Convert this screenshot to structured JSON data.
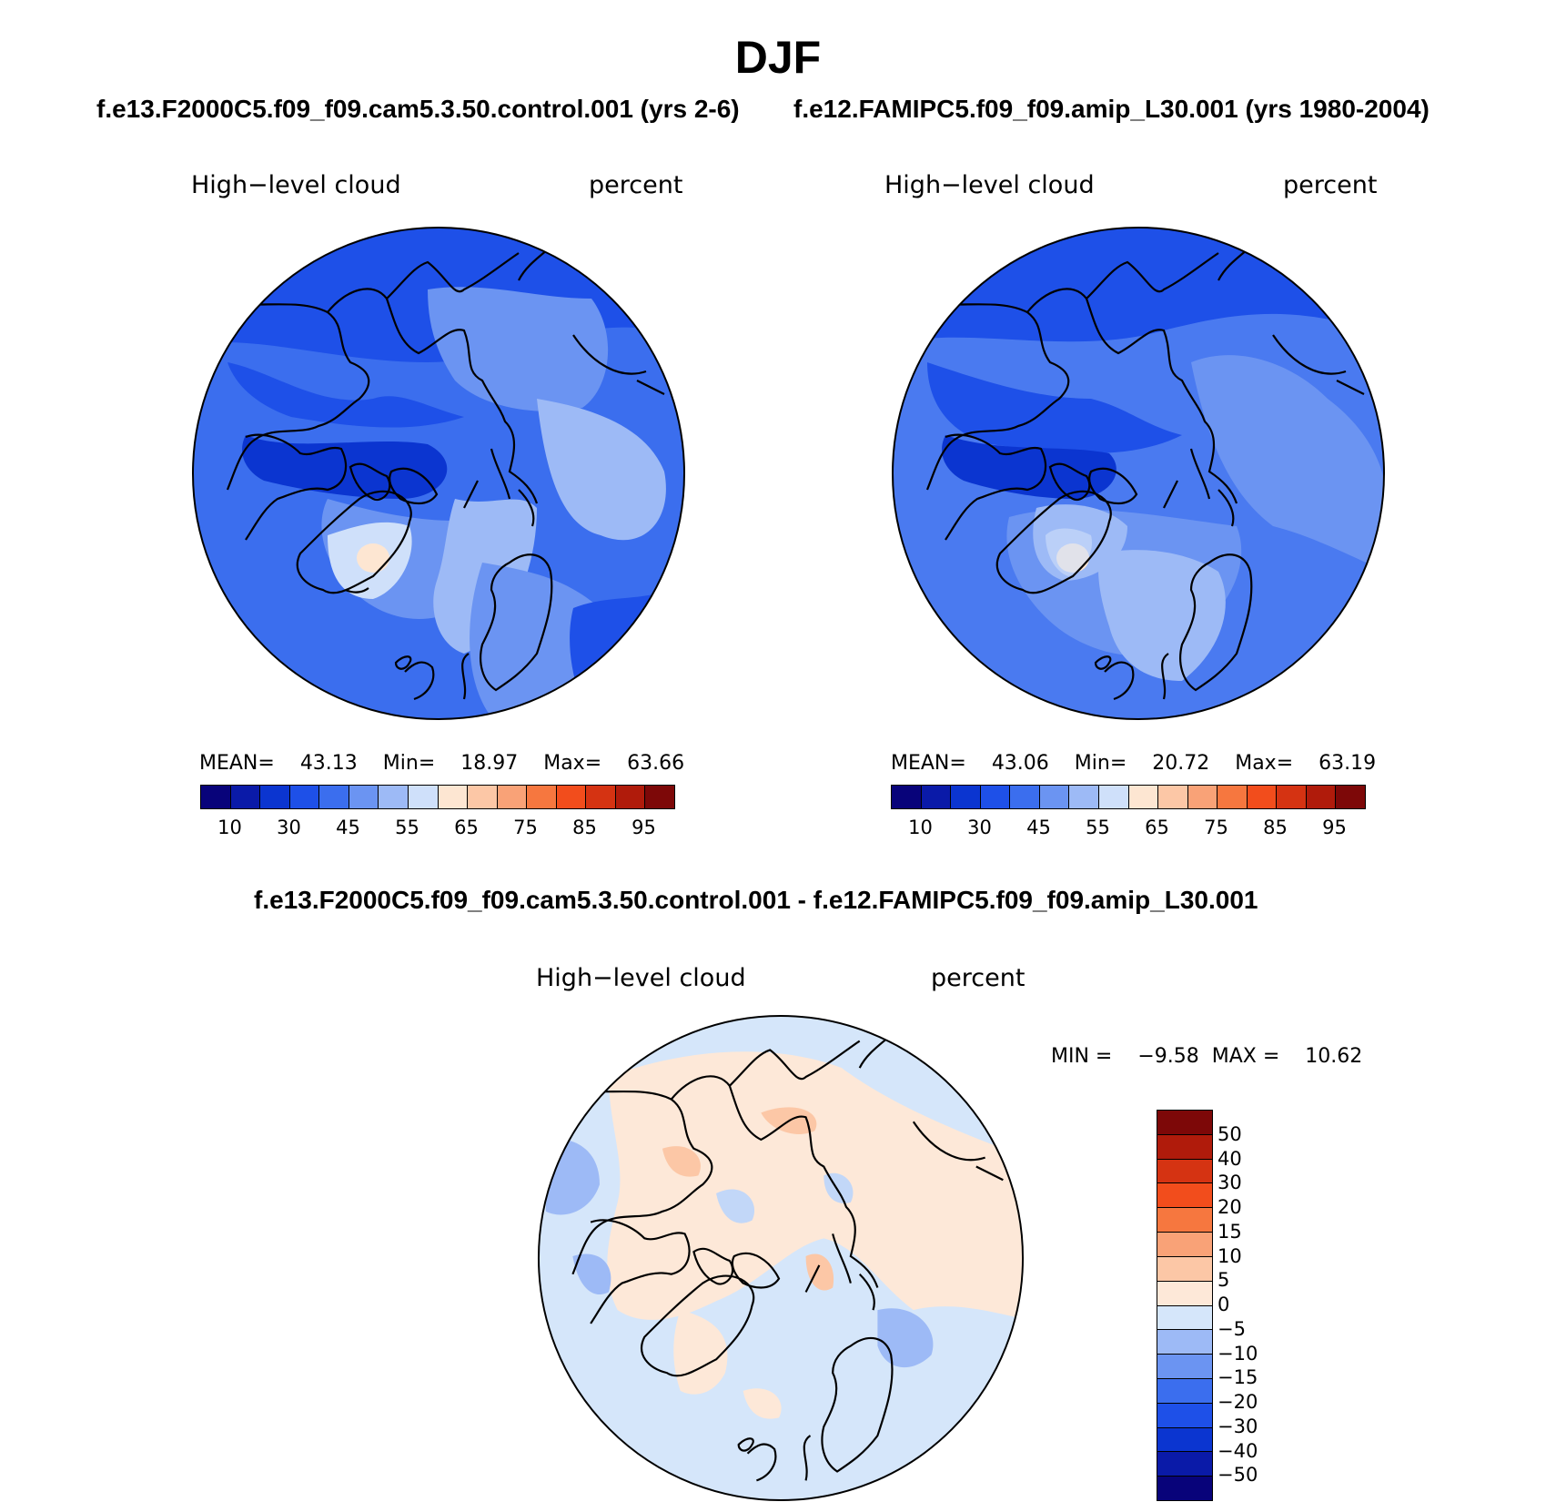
{
  "title": "DJF",
  "subtitle_top_left": "f.e13.F2000C5.f09_f09.cam5.3.50.control.001 (yrs 2-6)",
  "subtitle_top_right": "f.e12.FAMIPC5.f09_f09.amip_L30.001 (yrs 1980-2004)",
  "subtitle_bottom": "f.e13.F2000C5.f09_f09.cam5.3.50.control.001 - f.e12.FAMIPC5.f09_f09.amip_L30.001",
  "panels": [
    {
      "variable": "High−level cloud",
      "units": "percent",
      "mean_label": "MEAN=",
      "mean": "43.13",
      "min_label": "Min=",
      "min": "18.97",
      "max_label": "Max=",
      "max": "63.66"
    },
    {
      "variable": "High−level cloud",
      "units": "percent",
      "mean_label": "MEAN=",
      "mean": "43.06",
      "min_label": "Min=",
      "min": "20.72",
      "max_label": "Max=",
      "max": "63.19"
    }
  ],
  "diff_panel": {
    "variable": "High−level cloud",
    "units": "percent",
    "min_label": "MIN =",
    "min": "−9.58",
    "max_label": "MAX =",
    "max": "10.62"
  },
  "colorbar_abs": {
    "colors": [
      "#08037a",
      "#0a1aa8",
      "#0b35d0",
      "#1e50e8",
      "#3b6eee",
      "#6b94f2",
      "#9dbaf6",
      "#cfe0fa",
      "#fde6d2",
      "#fcc7a6",
      "#f9a277",
      "#f6773f",
      "#f24d1c",
      "#d53312",
      "#b01b0b",
      "#7d0808"
    ],
    "tick_labels": [
      "10",
      "30",
      "45",
      "55",
      "65",
      "75",
      "85",
      "95"
    ]
  },
  "colorbar_diff": {
    "colors": [
      "#08037a",
      "#0a1aa8",
      "#0b35d0",
      "#1e50e8",
      "#3b6eee",
      "#6b94f2",
      "#9dbaf6",
      "#d5e6fa",
      "#fde8d8",
      "#fcc7a6",
      "#f9a277",
      "#f6773f",
      "#f24d1c",
      "#d53312",
      "#b01b0b",
      "#7d0808"
    ],
    "tick_labels": [
      "50",
      "40",
      "30",
      "20",
      "15",
      "10",
      "5",
      "0",
      "−5",
      "−10",
      "−15",
      "−20",
      "−30",
      "−40",
      "−50"
    ]
  },
  "colors": {
    "ocean_abs_1": "#3b6eee",
    "ocean_abs_2": "#4a7af0",
    "diff_bg": "#d5e6fa",
    "diff_pos": "#fde8d8"
  }
}
